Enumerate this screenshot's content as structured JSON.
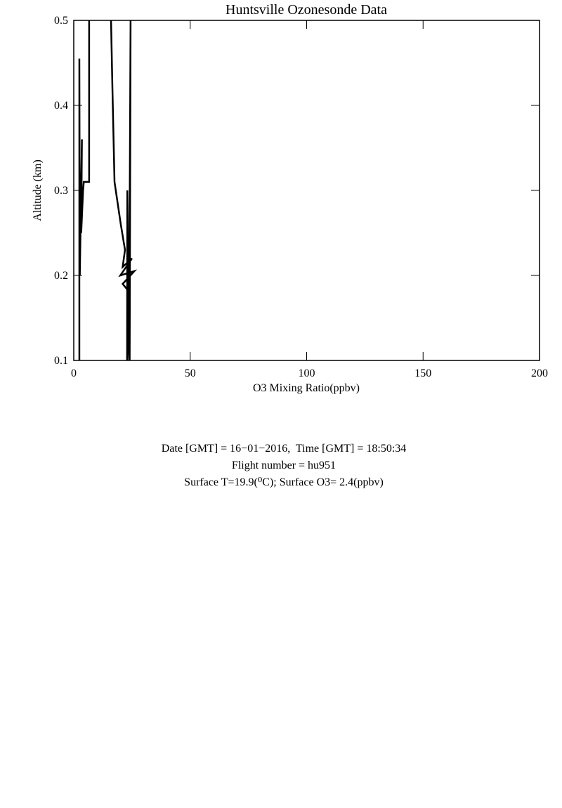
{
  "chart_data": {
    "type": "line",
    "title": "Huntsville Ozonesonde Data",
    "x_label": "O3 Mixing Ratio(ppbv)",
    "y_label": "Altitude (km)",
    "xlim": [
      0,
      200
    ],
    "xticks": [
      0,
      50,
      100,
      150,
      200
    ],
    "ylim": [
      0.1,
      0.5
    ],
    "yticks": [
      0.1,
      0.2,
      0.3,
      0.4,
      0.5
    ],
    "grid": false,
    "series": [
      {
        "color": "#000000",
        "x": [
          2.4,
          2.4,
          2.6,
          3.5,
          3.2,
          4.0,
          4.3,
          6.6,
          6.6
        ],
        "values": [
          0.1,
          0.455,
          0.2,
          0.36,
          0.25,
          0.3,
          0.31,
          0.31,
          0.5
        ]
      },
      {
        "color": "#000000",
        "x": [
          16.0,
          16.6,
          17.5,
          20.2,
          22.0,
          21.0,
          25.0,
          20.0,
          26.0,
          21.0,
          24.0,
          22.9,
          23.0,
          23.8,
          24.0,
          24.4,
          24.0
        ],
        "values": [
          0.5,
          0.42,
          0.31,
          0.26,
          0.23,
          0.21,
          0.22,
          0.2,
          0.205,
          0.19,
          0.18,
          0.1,
          0.3,
          0.1,
          0.27,
          0.5,
          0.1
        ]
      }
    ],
    "annotations": [
      "Date [GMT] = 16−01−2016,  Time [GMT] = 18:50:34",
      "Flight number = hu951",
      "Surface T=19.9(⁰C); Surface O3= 2.4(ppbv)"
    ]
  }
}
